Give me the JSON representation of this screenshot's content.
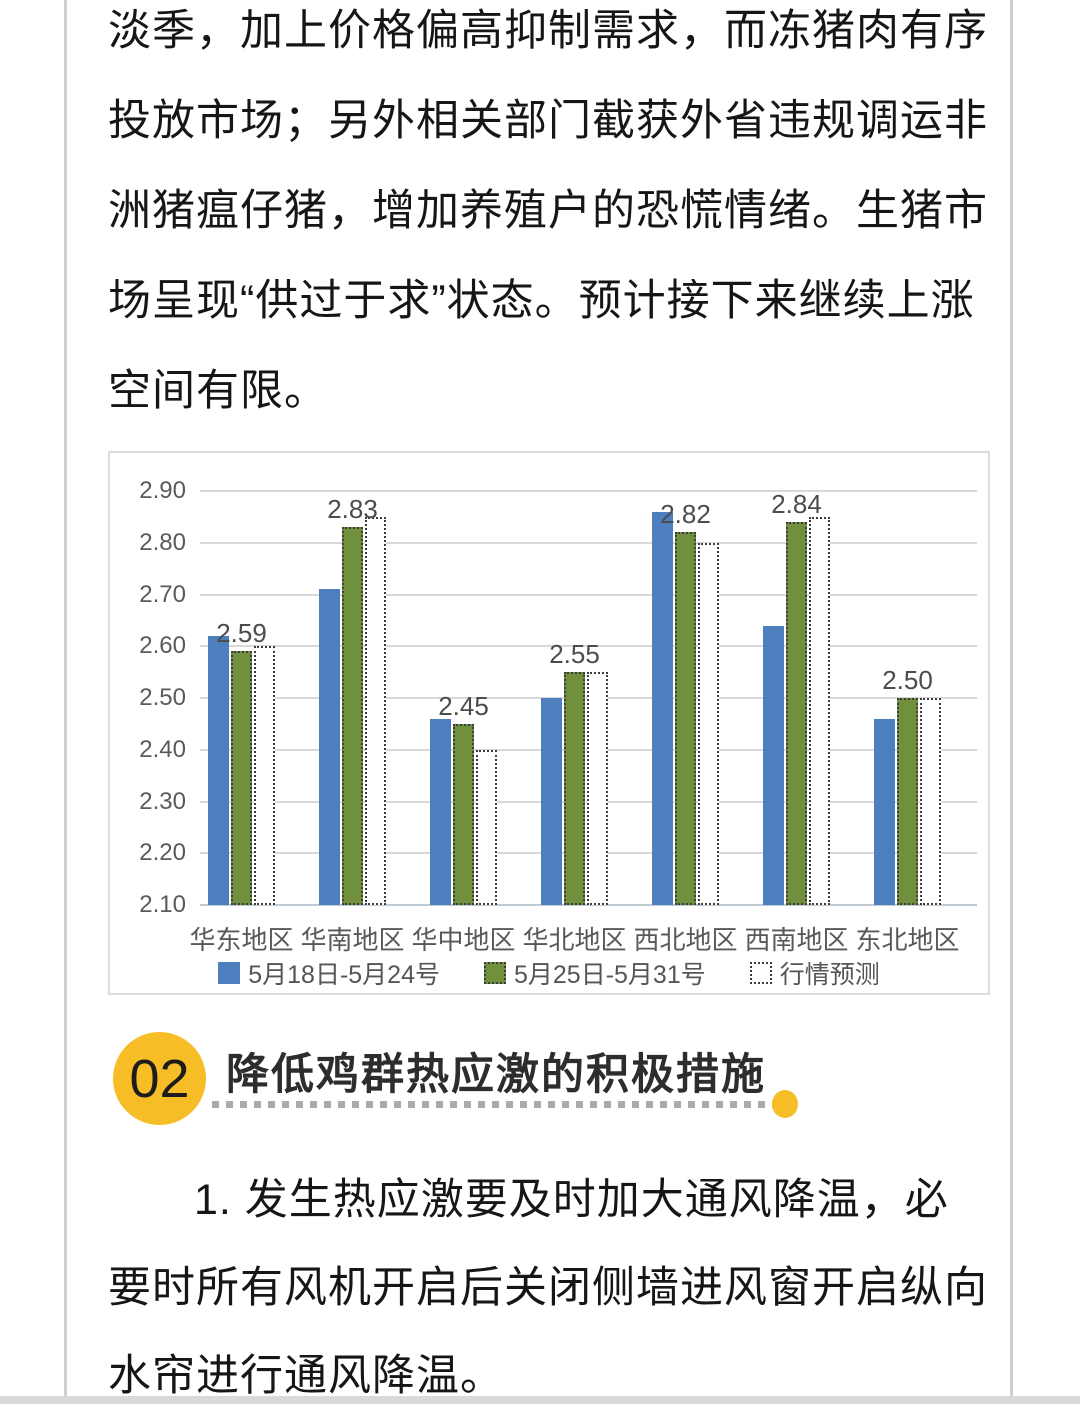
{
  "article": {
    "paragraph1_lines": [
      "淡季，加上价格偏高抑制需求，而冻猪肉有序",
      "投放市场；另外相关部门截获外省违规调运非",
      "洲猪瘟仔猪，增加养殖户的恐慌情绪。生猪市",
      "场呈现“供过于求”状态。预计接下来继续上涨",
      "空间有限。"
    ],
    "section2": {
      "number": "02",
      "title": "降低鸡群热应激的积极措施"
    },
    "paragraph2_lines": [
      "1. 发生热应激要及时加大通风降温，必",
      "要时所有风机开启后关闭侧墙进风窗开启纵向",
      "水帘进行通风降温。"
    ]
  },
  "chart_data": {
    "type": "bar",
    "categories": [
      "华东地区",
      "华南地区",
      "华中地区",
      "华北地区",
      "西北地区",
      "西南地区",
      "东北地区"
    ],
    "series": [
      {
        "name": "5月18日-5月24号",
        "style": "solid",
        "color": "#4d7ebd",
        "values": [
          2.62,
          2.71,
          2.46,
          2.5,
          2.86,
          2.64,
          2.46
        ]
      },
      {
        "name": "5月25日-5月31号",
        "style": "green",
        "color": "#71903d",
        "values": [
          2.59,
          2.83,
          2.45,
          2.55,
          2.82,
          2.84,
          2.5
        ]
      },
      {
        "name": "行情预测",
        "style": "outline",
        "color": "#ffffff",
        "values": [
          2.6,
          2.85,
          2.4,
          2.55,
          2.8,
          2.85,
          2.5
        ]
      }
    ],
    "bar_labels": [
      "2.59",
      "2.83",
      "2.45",
      "2.55",
      "2.82",
      "2.84",
      "2.50"
    ],
    "y_ticks": [
      "2.90",
      "2.80",
      "2.70",
      "2.60",
      "2.50",
      "2.40",
      "2.30",
      "2.20",
      "2.10"
    ],
    "ylim": [
      2.1,
      2.9
    ],
    "grid": true,
    "legend_position": "bottom",
    "title": "",
    "xlabel": "",
    "ylabel": ""
  },
  "colors": {
    "accent_yellow": "#f7bd26",
    "bar_blue": "#4d7ebd",
    "bar_green": "#71903d",
    "gridline": "#d9d9d9",
    "axis_text": "#595959",
    "body_text": "#161616"
  }
}
